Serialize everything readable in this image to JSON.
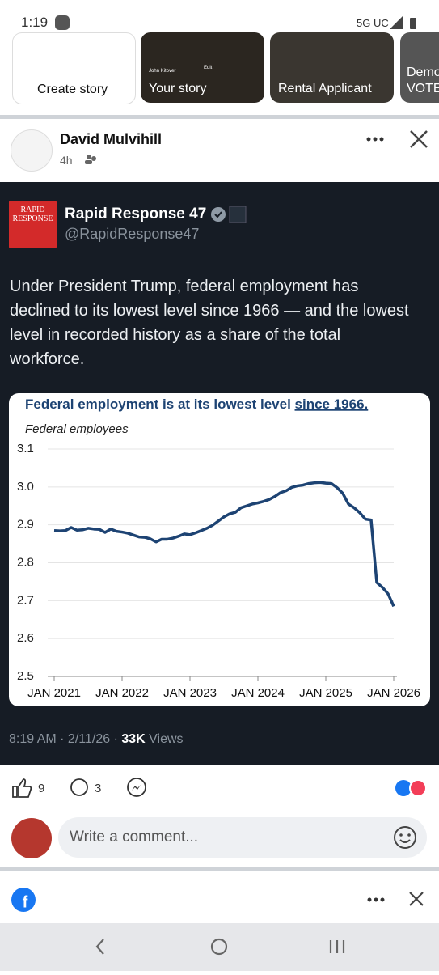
{
  "status_bar": {
    "time": "1:19",
    "network": "5G UC"
  },
  "stories": {
    "items": [
      "Create story",
      "Your story",
      "Rental Applicant",
      "Demo",
      "VOTE"
    ],
    "story_owner": "John Kitover",
    "story_edit": "Edit"
  },
  "post": {
    "author": "David Mulvihill",
    "time": "4h",
    "tweet": {
      "logo_text": [
        "RAPID",
        "RESPONSE"
      ],
      "name": "Rapid Response 47",
      "handle": "@RapidResponse47",
      "text": "Under President Trump, federal employment has declined to its lowest level since 1966 — and the lowest level in recorded history as a share of the total workforce.",
      "timestamp": "8:19 AM · 2/11/26 · ",
      "views_count": "33K",
      "views_label": " Views"
    },
    "likes": "9",
    "comments": "3",
    "comment_placeholder": "Write a comment..."
  },
  "chart_data": {
    "type": "line",
    "title": "Federal employment is at its lowest level ",
    "title_link": "since 1966.",
    "ylabel": "Federal employees",
    "x": [
      "2021-01",
      "2021-02",
      "2021-03",
      "2021-04",
      "2021-05",
      "2021-06",
      "2021-07",
      "2021-08",
      "2021-09",
      "2021-10",
      "2021-11",
      "2021-12",
      "2022-01",
      "2022-02",
      "2022-03",
      "2022-04",
      "2022-05",
      "2022-06",
      "2022-07",
      "2022-08",
      "2022-09",
      "2022-10",
      "2022-11",
      "2022-12",
      "2023-01",
      "2023-02",
      "2023-03",
      "2023-04",
      "2023-05",
      "2023-06",
      "2023-07",
      "2023-08",
      "2023-09",
      "2023-10",
      "2023-11",
      "2023-12",
      "2024-01",
      "2024-02",
      "2024-03",
      "2024-04",
      "2024-05",
      "2024-06",
      "2024-07",
      "2024-08",
      "2024-09",
      "2024-10",
      "2024-11",
      "2024-12",
      "2025-01",
      "2025-02",
      "2025-03",
      "2025-04",
      "2025-05",
      "2025-06",
      "2025-07",
      "2025-08",
      "2025-09",
      "2025-10",
      "2025-11",
      "2025-12",
      "2026-01"
    ],
    "series": [
      {
        "name": "Federal employees",
        "color": "#1d4373",
        "values": [
          2.885,
          2.884,
          2.885,
          2.893,
          2.886,
          2.887,
          2.891,
          2.889,
          2.888,
          2.88,
          2.889,
          2.883,
          2.881,
          2.878,
          2.873,
          2.868,
          2.867,
          2.863,
          2.855,
          2.862,
          2.862,
          2.865,
          2.87,
          2.876,
          2.874,
          2.879,
          2.885,
          2.891,
          2.899,
          2.91,
          2.921,
          2.929,
          2.933,
          2.945,
          2.95,
          2.955,
          2.958,
          2.962,
          2.967,
          2.975,
          2.985,
          2.99,
          2.999,
          3.003,
          3.005,
          3.009,
          3.011,
          3.012,
          3.01,
          3.009,
          2.998,
          2.983,
          2.955,
          2.945,
          2.932,
          2.915,
          2.913,
          2.748,
          2.735,
          2.718,
          2.685
        ]
      }
    ],
    "ylim": [
      2.5,
      3.1
    ],
    "yticks": [
      2.5,
      2.6,
      2.7,
      2.8,
      2.9,
      {
        "value": 3.0,
        "label": "3.0"
      },
      3.1
    ],
    "xlim": [
      "2021-01",
      "2026-01"
    ],
    "xticks": [
      {
        "value": "2021-01",
        "label": "JAN 2021"
      },
      {
        "value": "2022-01",
        "label": "JAN 2022"
      },
      {
        "value": "2023-01",
        "label": "JAN 2023"
      },
      {
        "value": "2024-01",
        "label": "JAN 2024"
      },
      {
        "value": "2025-01",
        "label": "JAN 2025"
      },
      {
        "value": "2026-01",
        "label": "JAN 2026"
      }
    ],
    "grid": true
  }
}
